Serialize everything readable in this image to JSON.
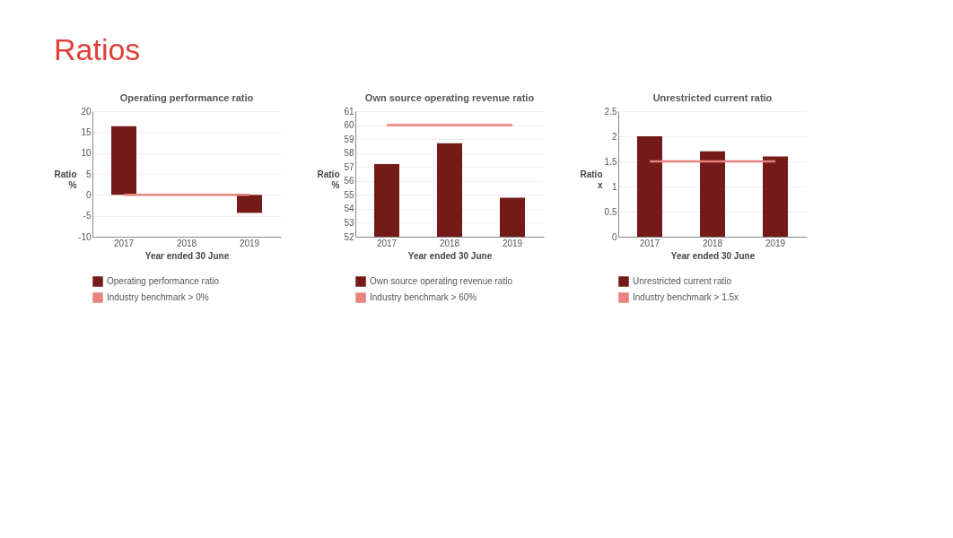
{
  "chart_data": [
    {
      "type": "bar",
      "title": "Operating performance ratio",
      "annotations": [
        "Ratios"
      ],
      "xlabel": "Year ended 30 June",
      "ylabel": "Ratio %",
      "categories": [
        "2017",
        "2018",
        "2019"
      ],
      "series": [
        {
          "name": "Operating performance ratio",
          "color": "#741b19",
          "values": [
            16.4,
            null,
            -4.3
          ]
        },
        {
          "name": "Industry benchmark > 0%",
          "type": "line",
          "color": "#e8837f",
          "values": [
            0,
            0,
            0
          ]
        }
      ],
      "ylim": [
        -10,
        20
      ],
      "yticks": [
        -10,
        -5,
        0,
        5,
        10,
        15,
        20
      ],
      "grid": "y",
      "legend": "bottom"
    },
    {
      "type": "bar",
      "title": "Own source operating revenue ratio",
      "xlabel": "Year ended 30 June",
      "ylabel": "Ratio %",
      "categories": [
        "2017",
        "2018",
        "2019"
      ],
      "series": [
        {
          "name": "Own source operating revenue ratio",
          "color": "#741b19",
          "values": [
            57.2,
            58.7,
            54.8
          ]
        },
        {
          "name": "Industry benchmark > 60%",
          "type": "line",
          "color": "#e8837f",
          "values": [
            60,
            60,
            60
          ]
        }
      ],
      "ylim": [
        52,
        61
      ],
      "yticks": [
        52,
        53,
        54,
        55,
        56,
        57,
        58,
        59,
        60,
        61
      ],
      "grid": "y",
      "legend": "bottom"
    },
    {
      "type": "bar",
      "title": "Unrestricted current ratio",
      "xlabel": "Year ended 30 June",
      "ylabel": "Ratio x",
      "categories": [
        "2017",
        "2018",
        "2019"
      ],
      "series": [
        {
          "name": "Unrestricted current ratio",
          "color": "#741b19",
          "values": [
            2.0,
            1.7,
            1.6
          ]
        },
        {
          "name": "Industry benchmark > 1.5x",
          "type": "line",
          "color": "#e8837f",
          "values": [
            1.5,
            1.5,
            1.5
          ]
        }
      ],
      "ylim": [
        0,
        2.5
      ],
      "yticks": [
        0,
        0.5,
        1,
        1.5,
        2,
        2.5
      ],
      "grid": "y",
      "legend": "bottom"
    }
  ]
}
